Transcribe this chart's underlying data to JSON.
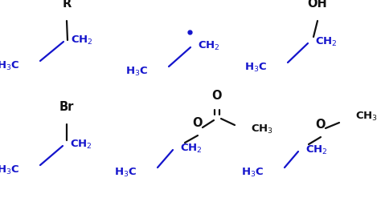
{
  "bg_color": "#ffffff",
  "blue": "#1414cc",
  "black": "#111111",
  "figsize": [
    4.74,
    2.47
  ],
  "dpi": 100,
  "structures": [
    {
      "id": "top_left",
      "panel": [
        0,
        0,
        158,
        123
      ]
    },
    {
      "id": "top_mid",
      "panel": [
        158,
        0,
        158,
        123
      ]
    },
    {
      "id": "top_right",
      "panel": [
        316,
        0,
        158,
        123
      ]
    },
    {
      "id": "bot_left",
      "panel": [
        0,
        123,
        158,
        124
      ]
    },
    {
      "id": "bot_mid",
      "panel": [
        158,
        123,
        158,
        124
      ]
    },
    {
      "id": "bot_right",
      "panel": [
        316,
        123,
        158,
        124
      ]
    }
  ]
}
